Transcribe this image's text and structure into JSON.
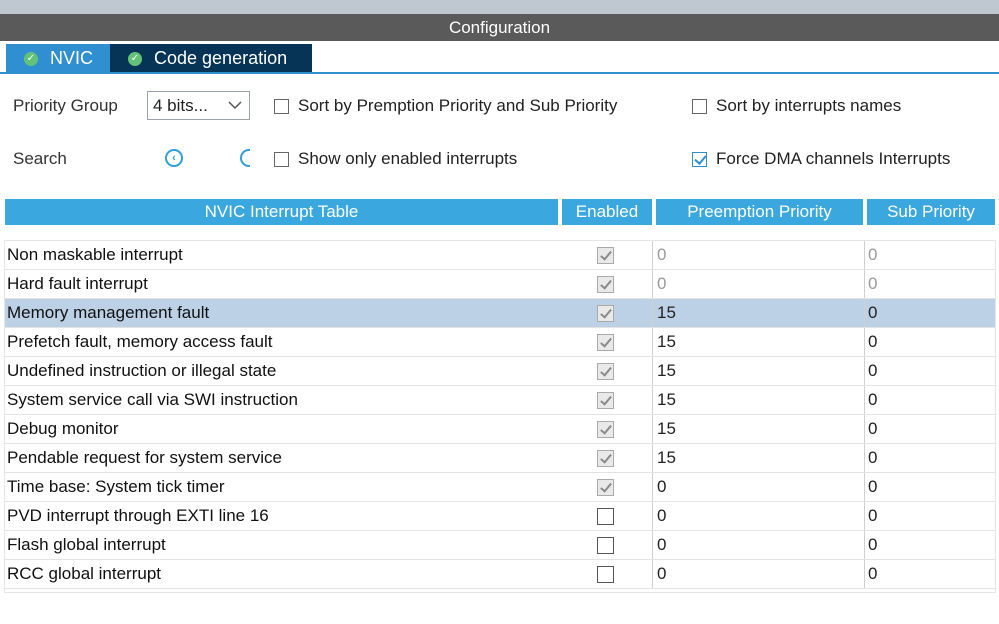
{
  "window": {
    "title": "Configuration"
  },
  "tabs": [
    {
      "label": "NVIC",
      "icon": "check-circle-icon"
    },
    {
      "label": "Code generation",
      "icon": "check-circle-icon"
    }
  ],
  "options": {
    "priority_group_label": "Priority Group",
    "priority_group_value": "4 bits...",
    "search_label": "Search",
    "sort_by_premption_label": "Sort by Premption Priority and Sub Priority",
    "sort_by_premption_checked": false,
    "sort_by_names_label": "Sort by interrupts names",
    "sort_by_names_checked": false,
    "show_enabled_label": "Show only enabled interrupts",
    "show_enabled_checked": false,
    "force_dma_label": "Force DMA channels Interrupts",
    "force_dma_checked": true
  },
  "table": {
    "headers": [
      "NVIC Interrupt Table",
      "Enabled",
      "Preemption Priority",
      "Sub Priority"
    ],
    "rows": [
      {
        "name": "Non maskable interrupt",
        "enabled": true,
        "preemption": "0",
        "sub": "0",
        "locked": true
      },
      {
        "name": "Hard fault interrupt",
        "enabled": true,
        "preemption": "0",
        "sub": "0",
        "locked": true
      },
      {
        "name": "Memory management fault",
        "enabled": true,
        "preemption": "15",
        "sub": "0",
        "selected": true
      },
      {
        "name": "Prefetch fault, memory access fault",
        "enabled": true,
        "preemption": "15",
        "sub": "0"
      },
      {
        "name": "Undefined instruction or illegal state",
        "enabled": true,
        "preemption": "15",
        "sub": "0"
      },
      {
        "name": "System service call via SWI instruction",
        "enabled": true,
        "preemption": "15",
        "sub": "0"
      },
      {
        "name": "Debug monitor",
        "enabled": true,
        "preemption": "15",
        "sub": "0"
      },
      {
        "name": "Pendable request for system service",
        "enabled": true,
        "preemption": "15",
        "sub": "0"
      },
      {
        "name": "Time base: System tick timer",
        "enabled": true,
        "preemption": "0",
        "sub": "0"
      },
      {
        "name": "PVD interrupt through EXTI line 16",
        "enabled": false,
        "preemption": "0",
        "sub": "0"
      },
      {
        "name": "Flash global interrupt",
        "enabled": false,
        "preemption": "0",
        "sub": "0"
      },
      {
        "name": "RCC global interrupt",
        "enabled": false,
        "preemption": "0",
        "sub": "0"
      }
    ]
  }
}
